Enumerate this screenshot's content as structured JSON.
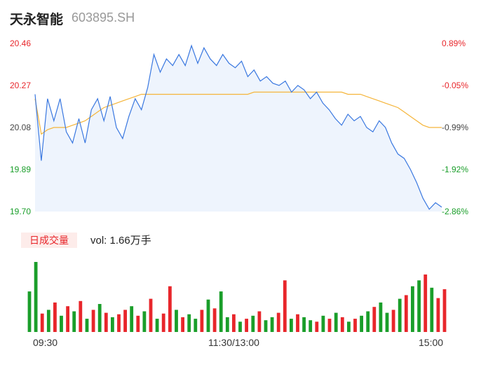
{
  "header": {
    "stock_name": "天永智能",
    "stock_code": "603895.SH"
  },
  "price_axis": {
    "left_ticks": [
      "20.46",
      "20.27",
      "20.08",
      "19.89",
      "19.70"
    ],
    "right_ticks": [
      "0.89%",
      "-0.05%",
      "-0.99%",
      "-1.92%",
      "-2.86%"
    ],
    "min": 19.7,
    "max": 20.46
  },
  "volume_panel": {
    "tab_label": "日成交量",
    "vol_text": "vol: 1.66万手"
  },
  "time_axis": [
    "09:30",
    "11:30/13:00",
    "15:00"
  ],
  "colors": {
    "price_line": "#3a78e0",
    "avg_line": "#f5b53a",
    "up": "#e8262b",
    "down": "#1a9e2a",
    "area_fill": "#eef4fd"
  },
  "chart_data": {
    "type": "line",
    "x_ticks": [
      "09:30",
      "11:30/13:00",
      "15:00"
    ],
    "ylim": [
      19.7,
      20.46
    ],
    "series": [
      {
        "values": [
          20.23,
          19.93,
          20.21,
          20.11,
          20.21,
          20.06,
          20.01,
          20.12,
          20.01,
          20.16,
          20.21,
          20.11,
          20.22,
          20.08,
          20.03,
          20.13,
          20.21,
          20.16,
          20.26,
          20.41,
          20.33,
          20.39,
          20.36,
          20.41,
          20.36,
          20.45,
          20.37,
          20.44,
          20.39,
          20.36,
          20.41,
          20.37,
          20.35,
          20.38,
          20.31,
          20.34,
          20.29,
          20.31,
          20.28,
          20.27,
          20.29,
          20.24,
          20.27,
          20.25,
          20.21,
          20.24,
          20.19,
          20.16,
          20.12,
          20.09,
          20.14,
          20.11,
          20.13,
          20.08,
          20.06,
          20.11,
          20.08,
          20.01,
          19.96,
          19.94,
          19.89,
          19.83,
          19.76,
          19.71,
          19.74,
          19.72
        ]
      },
      {
        "values": [
          20.21,
          20.05,
          20.07,
          20.08,
          20.08,
          20.08,
          20.09,
          20.1,
          20.11,
          20.13,
          20.15,
          20.17,
          20.18,
          20.19,
          20.2,
          20.21,
          20.22,
          20.23,
          20.23,
          20.23,
          20.23,
          20.23,
          20.23,
          20.23,
          20.23,
          20.23,
          20.23,
          20.23,
          20.23,
          20.23,
          20.23,
          20.23,
          20.23,
          20.23,
          20.23,
          20.24,
          20.24,
          20.24,
          20.24,
          20.24,
          20.24,
          20.24,
          20.24,
          20.24,
          20.24,
          20.24,
          20.24,
          20.24,
          20.24,
          20.24,
          20.23,
          20.23,
          20.23,
          20.22,
          20.21,
          20.2,
          20.19,
          20.18,
          20.17,
          20.15,
          20.13,
          20.11,
          20.09,
          20.08,
          20.08,
          20.08
        ]
      }
    ],
    "volume": [
      55,
      95,
      25,
      30,
      40,
      22,
      35,
      28,
      42,
      18,
      30,
      38,
      26,
      20,
      24,
      30,
      35,
      22,
      28,
      45,
      18,
      25,
      62,
      30,
      20,
      24,
      18,
      30,
      44,
      32,
      55,
      20,
      24,
      14,
      18,
      22,
      28,
      16,
      20,
      26,
      70,
      18,
      24,
      20,
      16,
      14,
      22,
      18,
      26,
      20,
      14,
      18,
      22,
      28,
      34,
      40,
      26,
      30,
      45,
      50,
      62,
      70,
      78,
      60,
      46,
      58
    ],
    "volume_direction": [
      "down",
      "down",
      "up",
      "down",
      "up",
      "down",
      "up",
      "down",
      "up",
      "down",
      "up",
      "down",
      "up",
      "down",
      "up",
      "up",
      "down",
      "up",
      "down",
      "up",
      "down",
      "up",
      "up",
      "down",
      "up",
      "down",
      "down",
      "up",
      "down",
      "up",
      "down",
      "down",
      "up",
      "down",
      "up",
      "down",
      "up",
      "down",
      "down",
      "up",
      "up",
      "down",
      "up",
      "down",
      "down",
      "up",
      "down",
      "up",
      "down",
      "up",
      "down",
      "up",
      "down",
      "down",
      "up",
      "down",
      "down",
      "up",
      "down",
      "up",
      "down",
      "down",
      "up",
      "down",
      "up",
      "up"
    ]
  }
}
